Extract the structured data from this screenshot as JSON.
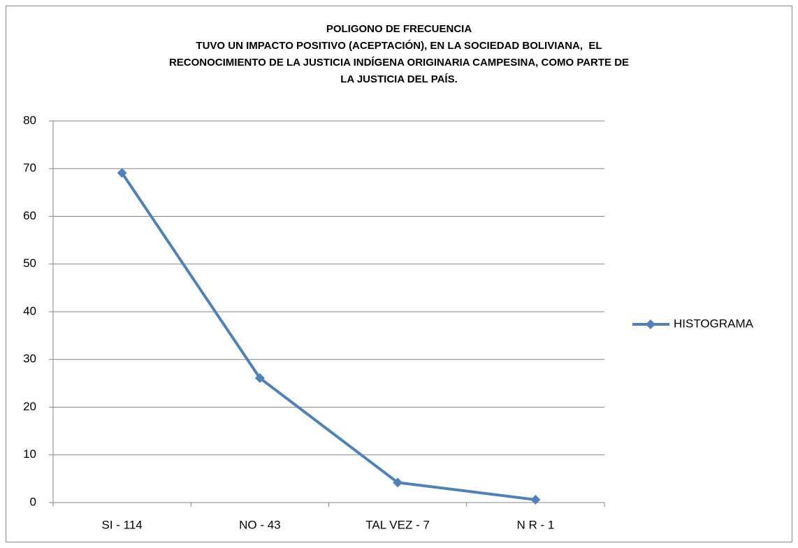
{
  "chart_data": {
    "type": "line",
    "title": [
      "POLIGONO DE FRECUENCIA",
      "TUVO UN IMPACTO POSITIVO (ACEPTACIÓN), EN LA SOCIEDAD BOLIVIANA,  EL",
      "RECONOCIMIENTO DE LA JUSTICIA INDÍGENA ORIGINARIA CAMPESINA, COMO PARTE DE",
      "LA JUSTICIA DEL PAÍS."
    ],
    "categories": [
      "SI - 114",
      "NO - 43",
      "TAL VEZ - 7",
      "N R - 1"
    ],
    "series": [
      {
        "name": "HISTOGRAMA",
        "color": "#4f81bd",
        "values": [
          69.1,
          26.1,
          4.2,
          0.6
        ]
      }
    ],
    "ylim": [
      0,
      80
    ],
    "yticks": [
      0,
      10,
      20,
      30,
      40,
      50,
      60,
      70,
      80
    ],
    "grid": true,
    "legend": "right"
  }
}
